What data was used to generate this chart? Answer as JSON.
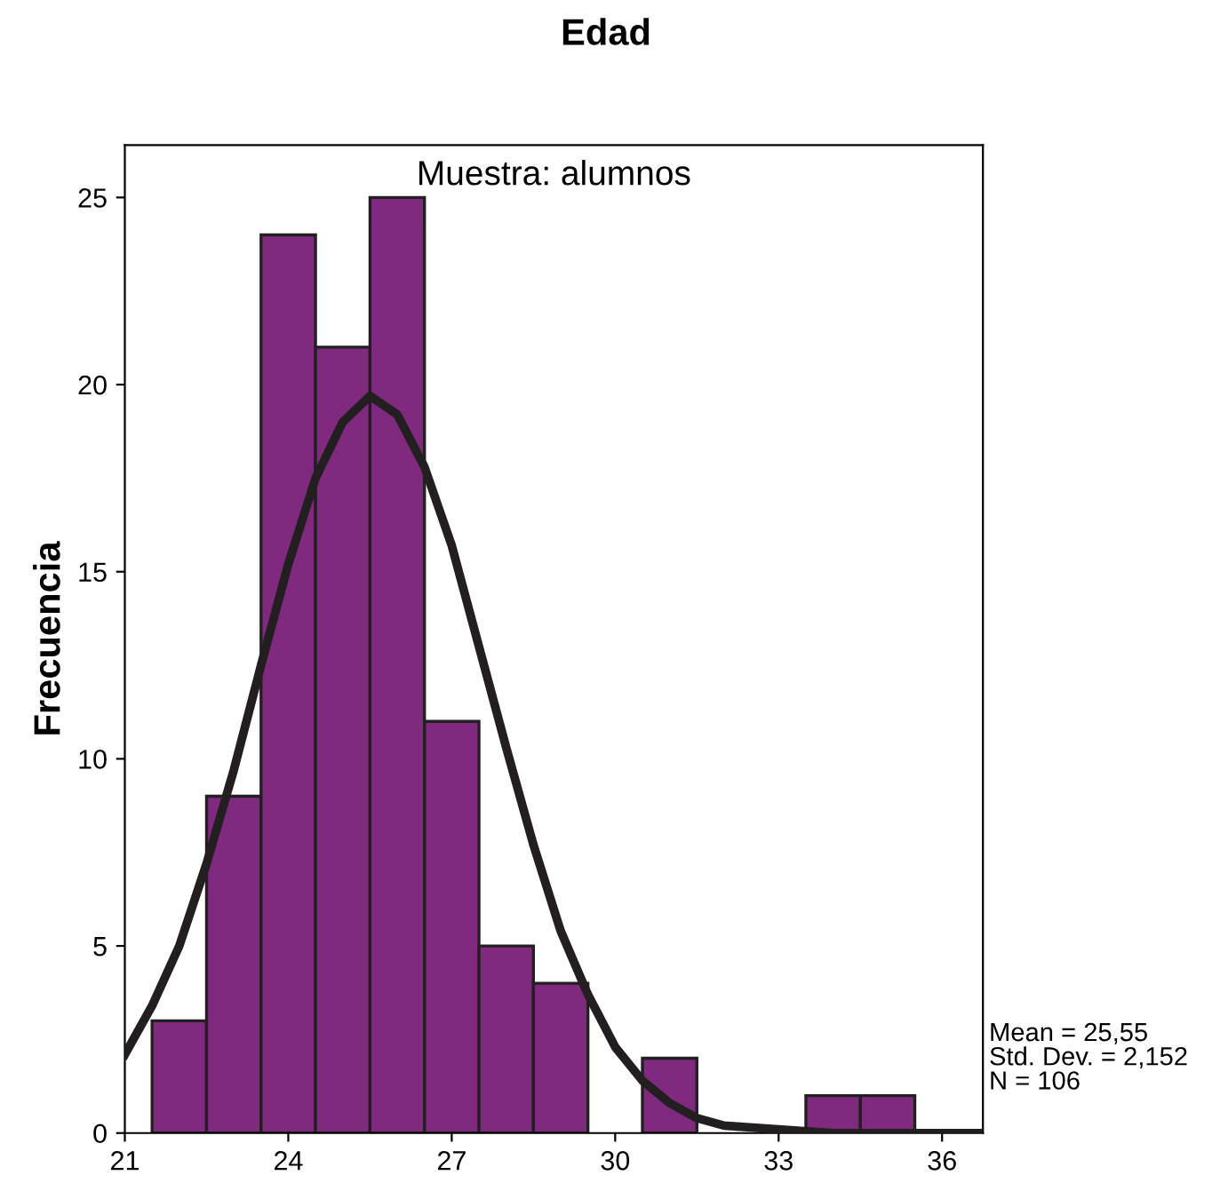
{
  "chart_data": {
    "type": "histogram",
    "title": "Edad",
    "ylabel": "Frecuencia",
    "bins": [
      21.5,
      22.5,
      23.5,
      24.5,
      25.5,
      26.5,
      27.5,
      28.5,
      29.5,
      30.5,
      31.5,
      32.5,
      33.5,
      34.5,
      35.5
    ],
    "values": [
      3,
      9,
      24,
      21,
      25,
      11,
      5,
      4,
      0,
      2,
      0,
      0,
      1,
      1
    ],
    "color": "#7f2a7f",
    "series": [
      {
        "type": "line",
        "color": "#231f20",
        "x": [
          21,
          21.5,
          22,
          22.5,
          23,
          23.5,
          24,
          24.5,
          25,
          25.5,
          26,
          26.5,
          27,
          27.5,
          28,
          28.5,
          29,
          29.5,
          30,
          30.5,
          31,
          31.5,
          32,
          33,
          34,
          35,
          36.75
        ],
        "values": [
          2.1,
          3.4,
          5.0,
          7.2,
          9.7,
          12.5,
          15.2,
          17.5,
          19.0,
          19.7,
          19.2,
          17.8,
          15.7,
          13.0,
          10.3,
          7.7,
          5.4,
          3.7,
          2.3,
          1.4,
          0.8,
          0.4,
          0.2,
          0.1,
          0,
          0,
          0
        ]
      }
    ],
    "xlim": [
      21,
      36.75
    ],
    "ylim": [
      0,
      26.4
    ],
    "xticks": [
      21,
      24,
      27,
      30,
      33,
      36
    ],
    "yticks": [
      0,
      5,
      10,
      15,
      20,
      25
    ],
    "grid": false,
    "legend": false,
    "annotations": [
      "Muestra: alumnos",
      "Mean = 25,55\nStd. Dev. = 2,152\nN = 106"
    ]
  }
}
